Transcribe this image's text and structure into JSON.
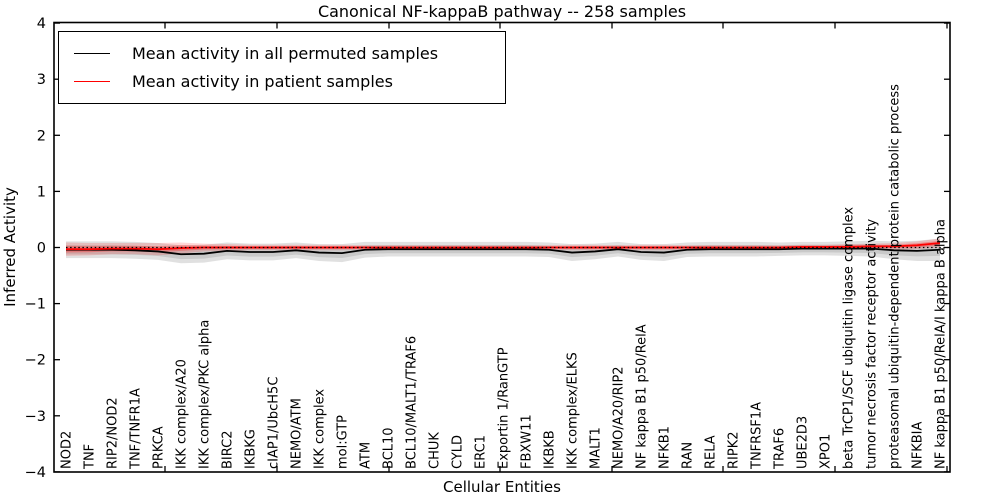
{
  "title": "Canonical NF-kappaB pathway -- 258 samples",
  "axes": {
    "x_label": "Cellular Entities",
    "y_label": "Inferred Activity",
    "y_tick_labels": [
      "4",
      "3",
      "2",
      "1",
      "0",
      "−1",
      "−2",
      "−3",
      "−4"
    ]
  },
  "legend": {
    "items": [
      {
        "label": "Mean activity in all permuted samples",
        "color": "#000000"
      },
      {
        "label": "Mean activity in patient samples",
        "color": "#ff0000"
      }
    ]
  },
  "chart_data": {
    "type": "line",
    "title": "Canonical NF-kappaB pathway -- 258 samples",
    "xlabel": "Cellular Entities",
    "ylabel": "Inferred Activity",
    "ylim": [
      -4,
      4
    ],
    "y_ticks": [
      4,
      3,
      2,
      1,
      0,
      -1,
      -2,
      -3,
      -4
    ],
    "grid": false,
    "legend_position": "upper left",
    "reference_line": {
      "y": 0,
      "style": "dotted",
      "color": "#000000"
    },
    "categories": [
      "NOD2",
      "TNF",
      "RIP2/NOD2",
      "TNF/TNFR1A",
      "PRKCA",
      "IKK complex/A20",
      "IKK complex/PKC alpha",
      "BIRC2",
      "IKBKG",
      "cIAP1/UbcH5C",
      "NEMO/ATM",
      "IKK complex",
      "mol:GTP",
      "ATM",
      "BCL10",
      "BCL10/MALT1/TRAF6",
      "CHUK",
      "CYLD",
      "ERC1",
      "Exportin 1/RanGTP",
      "FBXW11",
      "IKBKB",
      "IKK complex/ELKS",
      "MALT1",
      "NEMO/A20/RIP2",
      "NF kappa B1 p50/RelA",
      "NFKB1",
      "RAN",
      "RELA",
      "RIPK2",
      "TNFRSF1A",
      "TRAF6",
      "UBE2D3",
      "XPO1",
      "beta TrCP1/SCF ubiquitin ligase complex",
      "tumor necrosis factor receptor activity",
      "proteasomal ubiquitin-dependent protein catabolic process",
      "NFKBIA",
      "NF kappa B1 p50/RelA/I kappa B alpha"
    ],
    "series": [
      {
        "name": "Mean activity in all permuted samples",
        "color": "#000000",
        "band_color": "#bbbbbb",
        "values": [
          -0.04,
          -0.04,
          -0.04,
          -0.05,
          -0.07,
          -0.12,
          -0.11,
          -0.06,
          -0.08,
          -0.08,
          -0.05,
          -0.09,
          -0.1,
          -0.04,
          -0.03,
          -0.03,
          -0.03,
          -0.03,
          -0.03,
          -0.03,
          -0.03,
          -0.04,
          -0.09,
          -0.07,
          -0.03,
          -0.08,
          -0.09,
          -0.04,
          -0.03,
          -0.03,
          -0.03,
          -0.03,
          -0.02,
          -0.02,
          -0.02,
          -0.02,
          -0.05,
          -0.06,
          -0.04
        ],
        "band_halfwidth": [
          0.15,
          0.15,
          0.15,
          0.15,
          0.15,
          0.16,
          0.16,
          0.15,
          0.15,
          0.15,
          0.14,
          0.15,
          0.16,
          0.14,
          0.13,
          0.13,
          0.13,
          0.13,
          0.13,
          0.13,
          0.13,
          0.13,
          0.15,
          0.14,
          0.13,
          0.14,
          0.15,
          0.13,
          0.13,
          0.13,
          0.13,
          0.12,
          0.12,
          0.12,
          0.13,
          0.14,
          0.16,
          0.18,
          0.2
        ]
      },
      {
        "name": "Mean activity in patient samples",
        "color": "#ff0000",
        "band_color": "#ff9999",
        "values": [
          -0.03,
          -0.03,
          -0.02,
          -0.02,
          -0.03,
          -0.01,
          0,
          0,
          0,
          0,
          0,
          0,
          0,
          0,
          0,
          0,
          0,
          0,
          0,
          0,
          0,
          0,
          0,
          0,
          0,
          0,
          0,
          0,
          0,
          0,
          0,
          0,
          0.01,
          0.01,
          0.01,
          0.02,
          0.02,
          0.04,
          0.08
        ],
        "band_halfwidth": [
          0.12,
          0.11,
          0.1,
          0.1,
          0.11,
          0.1,
          0.07,
          0.06,
          0.05,
          0.05,
          0.05,
          0.05,
          0.05,
          0.04,
          0.04,
          0.04,
          0.04,
          0.04,
          0.04,
          0.04,
          0.04,
          0.04,
          0.05,
          0.05,
          0.04,
          0.05,
          0.05,
          0.04,
          0.04,
          0.04,
          0.04,
          0.04,
          0.04,
          0.04,
          0.05,
          0.05,
          0.06,
          0.07,
          0.08
        ]
      }
    ]
  }
}
